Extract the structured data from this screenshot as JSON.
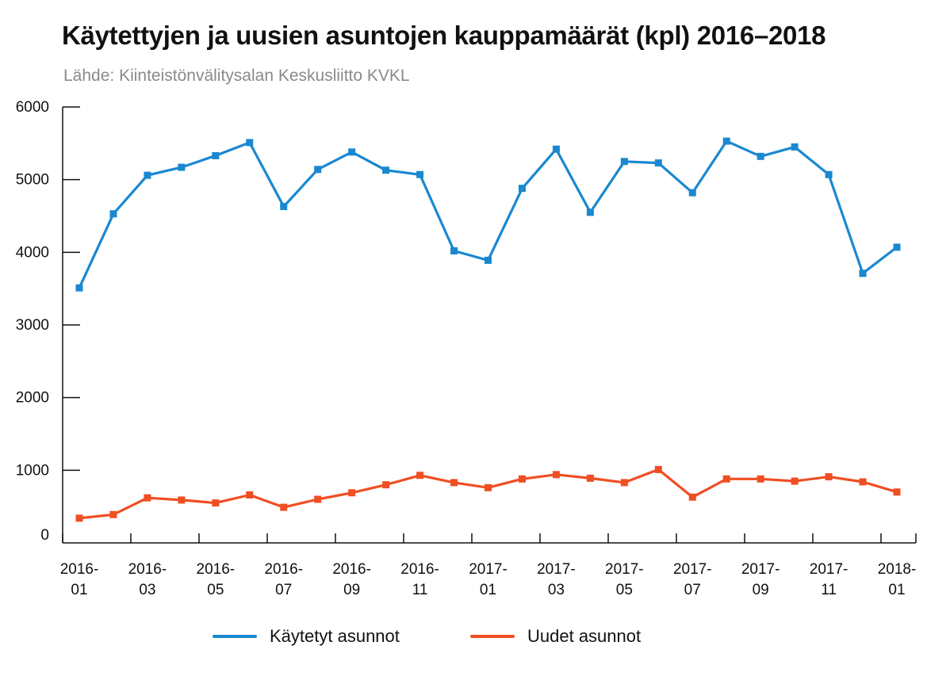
{
  "title": "Käytettyjen ja uusien asuntojen kauppamäärät (kpl) 2016–2018",
  "subtitle": "Lähde: Kiinteistönvälitysalan Keskusliitto KVKL",
  "colors": {
    "used": "#1a88d1",
    "new": "#f04e23",
    "axis": "#111111"
  },
  "chart_data": {
    "type": "line",
    "title": "Käytettyjen ja uusien asuntojen kauppamäärät (kpl) 2016–2018",
    "subtitle": "Lähde: Kiinteistönvälitysalan Keskusliitto KVKL",
    "x": [
      "2016-01",
      "2016-02",
      "2016-03",
      "2016-04",
      "2016-05",
      "2016-06",
      "2016-07",
      "2016-08",
      "2016-09",
      "2016-10",
      "2016-11",
      "2016-12",
      "2017-01",
      "2017-02",
      "2017-03",
      "2017-04",
      "2017-05",
      "2017-06",
      "2017-07",
      "2017-08",
      "2017-09",
      "2017-10",
      "2017-11",
      "2017-12",
      "2018-01"
    ],
    "x_tick_labels": [
      {
        "top": "2016-",
        "bottom": "01"
      },
      {
        "top": "2016-",
        "bottom": "03"
      },
      {
        "top": "2016-",
        "bottom": "05"
      },
      {
        "top": "2016-",
        "bottom": "07"
      },
      {
        "top": "2016-",
        "bottom": "09"
      },
      {
        "top": "2016-",
        "bottom": "11"
      },
      {
        "top": "2017-",
        "bottom": "01"
      },
      {
        "top": "2017-",
        "bottom": "03"
      },
      {
        "top": "2017-",
        "bottom": "05"
      },
      {
        "top": "2017-",
        "bottom": "07"
      },
      {
        "top": "2017-",
        "bottom": "09"
      },
      {
        "top": "2017-",
        "bottom": "11"
      },
      {
        "top": "2018-",
        "bottom": "01"
      }
    ],
    "y_ticks": [
      0,
      1000,
      2000,
      3000,
      4000,
      5000,
      6000
    ],
    "ylim": [
      0,
      6000
    ],
    "grid": false,
    "legend_position": "bottom",
    "series": [
      {
        "name": "Käytetyt asunnot",
        "color": "#1a88d1",
        "values": [
          3510,
          4530,
          5060,
          5170,
          5330,
          5510,
          4630,
          5140,
          5380,
          5130,
          5070,
          4020,
          3890,
          4880,
          5420,
          4550,
          5250,
          5230,
          4820,
          5530,
          5320,
          5450,
          5070,
          3710,
          4070
        ]
      },
      {
        "name": "Uudet asunnot",
        "color": "#f04e23",
        "values": [
          340,
          390,
          620,
          590,
          550,
          660,
          490,
          600,
          690,
          800,
          930,
          830,
          760,
          880,
          940,
          890,
          830,
          1010,
          630,
          880,
          880,
          850,
          910,
          840,
          700
        ]
      }
    ]
  }
}
